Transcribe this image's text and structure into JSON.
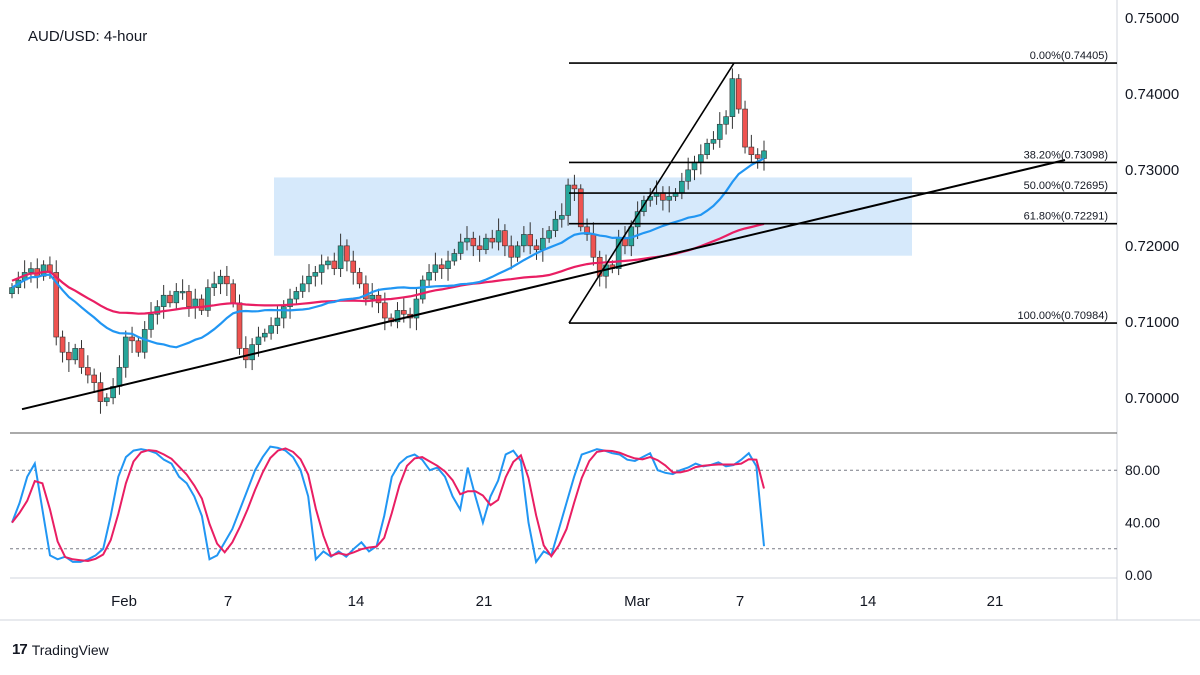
{
  "header": {
    "title": "AUD/USD: 4-hour"
  },
  "brand": {
    "logo": "17",
    "name": "TradingView"
  },
  "colors": {
    "bull": "#26a69a",
    "bear": "#ef5350",
    "ma_fast": "#2196f3",
    "ma_slow": "#e91e63",
    "zone": "#d6e9fb",
    "line": "#000000",
    "stoch_k": "#2196f3",
    "stoch_d": "#e91e63",
    "grid": "#787b86"
  },
  "chart_data": [
    {
      "type": "candlestick",
      "title": "AUD/USD: 4-hour",
      "ylim": [
        0.6955,
        0.7513
      ],
      "y_ticks": [
        "0.75000",
        "0.74000",
        "0.73000",
        "0.72000",
        "0.71000",
        "0.70000"
      ],
      "x_ticks": [
        "Feb",
        "7",
        "14",
        "21",
        "Mar",
        "7",
        "14",
        "21"
      ],
      "fib_levels": [
        {
          "label": "0.00%(0.74405)",
          "value": 0.74405
        },
        {
          "label": "38.20%(0.73098)",
          "value": 0.73098
        },
        {
          "label": "50.00%(0.72695)",
          "value": 0.72695
        },
        {
          "label": "61.80%(0.72291)",
          "value": 0.72291
        },
        {
          "label": "100.00%(0.70984)",
          "value": 0.70984
        }
      ],
      "zone": {
        "top": 0.729,
        "bottom": 0.7187
      },
      "closes": [
        0.7145,
        0.7155,
        0.7165,
        0.717,
        0.716,
        0.7175,
        0.7165,
        0.708,
        0.706,
        0.705,
        0.7065,
        0.704,
        0.703,
        0.702,
        0.6995,
        0.7,
        0.7015,
        0.704,
        0.708,
        0.7075,
        0.706,
        0.709,
        0.711,
        0.712,
        0.7135,
        0.7125,
        0.714,
        0.714,
        0.712,
        0.713,
        0.7115,
        0.7145,
        0.715,
        0.716,
        0.715,
        0.7125,
        0.7065,
        0.705,
        0.707,
        0.708,
        0.7085,
        0.7095,
        0.7105,
        0.712,
        0.713,
        0.714,
        0.715,
        0.716,
        0.7165,
        0.7175,
        0.718,
        0.717,
        0.72,
        0.718,
        0.7165,
        0.715,
        0.713,
        0.7135,
        0.7125,
        0.7105,
        0.71,
        0.7115,
        0.711,
        0.7105,
        0.713,
        0.7155,
        0.7165,
        0.7175,
        0.717,
        0.718,
        0.719,
        0.7205,
        0.721,
        0.72,
        0.7195,
        0.721,
        0.7205,
        0.722,
        0.72,
        0.7185,
        0.72,
        0.7215,
        0.72,
        0.7195,
        0.721,
        0.722,
        0.7235,
        0.724,
        0.728,
        0.7275,
        0.7225,
        0.7215,
        0.7185,
        0.716,
        0.7175,
        0.717,
        0.721,
        0.72,
        0.7225,
        0.7245,
        0.726,
        0.7265,
        0.727,
        0.726,
        0.7265,
        0.727,
        0.7285,
        0.73,
        0.731,
        0.732,
        0.7335,
        0.734,
        0.736,
        0.737,
        0.742,
        0.738,
        0.733,
        0.732,
        0.7315,
        0.7325
      ],
      "stoch_ylim": [
        0,
        100
      ],
      "stoch_ticks": [
        "80.00",
        "40.00",
        "0.00"
      ],
      "stoch_levels": [
        80,
        20
      ],
      "stoch_k": [
        40,
        55,
        75,
        85,
        50,
        15,
        12,
        14,
        10,
        10,
        12,
        15,
        20,
        45,
        75,
        90,
        95,
        96,
        95,
        93,
        88,
        85,
        75,
        70,
        60,
        45,
        12,
        15,
        25,
        35,
        50,
        65,
        80,
        90,
        98,
        97,
        95,
        90,
        80,
        60,
        12,
        18,
        14,
        18,
        14,
        20,
        25,
        18,
        22,
        45,
        75,
        85,
        90,
        92,
        88,
        80,
        82,
        75,
        60,
        50,
        82,
        60,
        40,
        60,
        72,
        92,
        95,
        87,
        40,
        10,
        18,
        15,
        35,
        55,
        75,
        92,
        94,
        96,
        95,
        93,
        92,
        88,
        87,
        90,
        93,
        80,
        78,
        77,
        80,
        82,
        85,
        83,
        84,
        86,
        83,
        84,
        88,
        93,
        83,
        22
      ]
    }
  ]
}
